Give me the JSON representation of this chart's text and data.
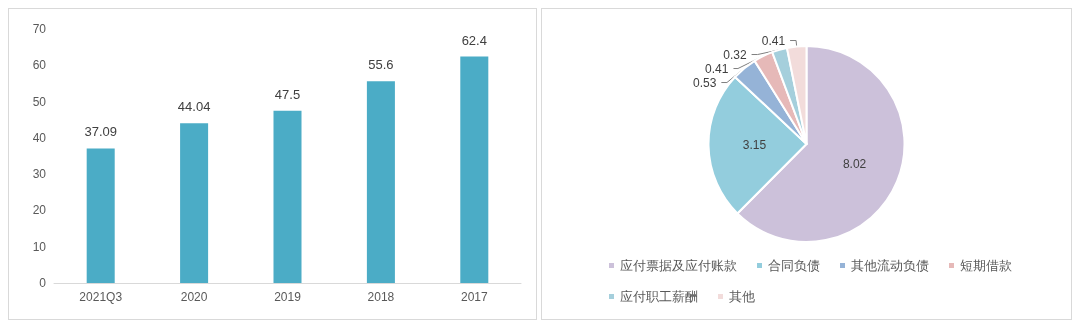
{
  "chart_data": [
    {
      "type": "bar",
      "categories": [
        "2021Q3",
        "2020",
        "2019",
        "2018",
        "2017"
      ],
      "values": [
        37.09,
        44.04,
        47.5,
        55.6,
        62.4
      ],
      "color": "#4bacc6",
      "ylim": [
        0,
        70
      ],
      "yticks": [
        0,
        10,
        20,
        30,
        40,
        50,
        60,
        70
      ],
      "grid": false,
      "data_labels": true,
      "legend": false
    },
    {
      "type": "pie",
      "categories": [
        "应付票据及应付账款",
        "合同负债",
        "其他流动负债",
        "短期借款",
        "应付职工薪酬",
        "其他"
      ],
      "values": [
        8.02,
        3.15,
        0.53,
        0.41,
        0.32,
        0.41
      ],
      "colors": [
        "#ccc1da",
        "#93cddd",
        "#95b3d7",
        "#e6b9b8",
        "#a5cfdc",
        "#f2dcdb"
      ],
      "data_labels": true,
      "legend": "bottom"
    }
  ]
}
